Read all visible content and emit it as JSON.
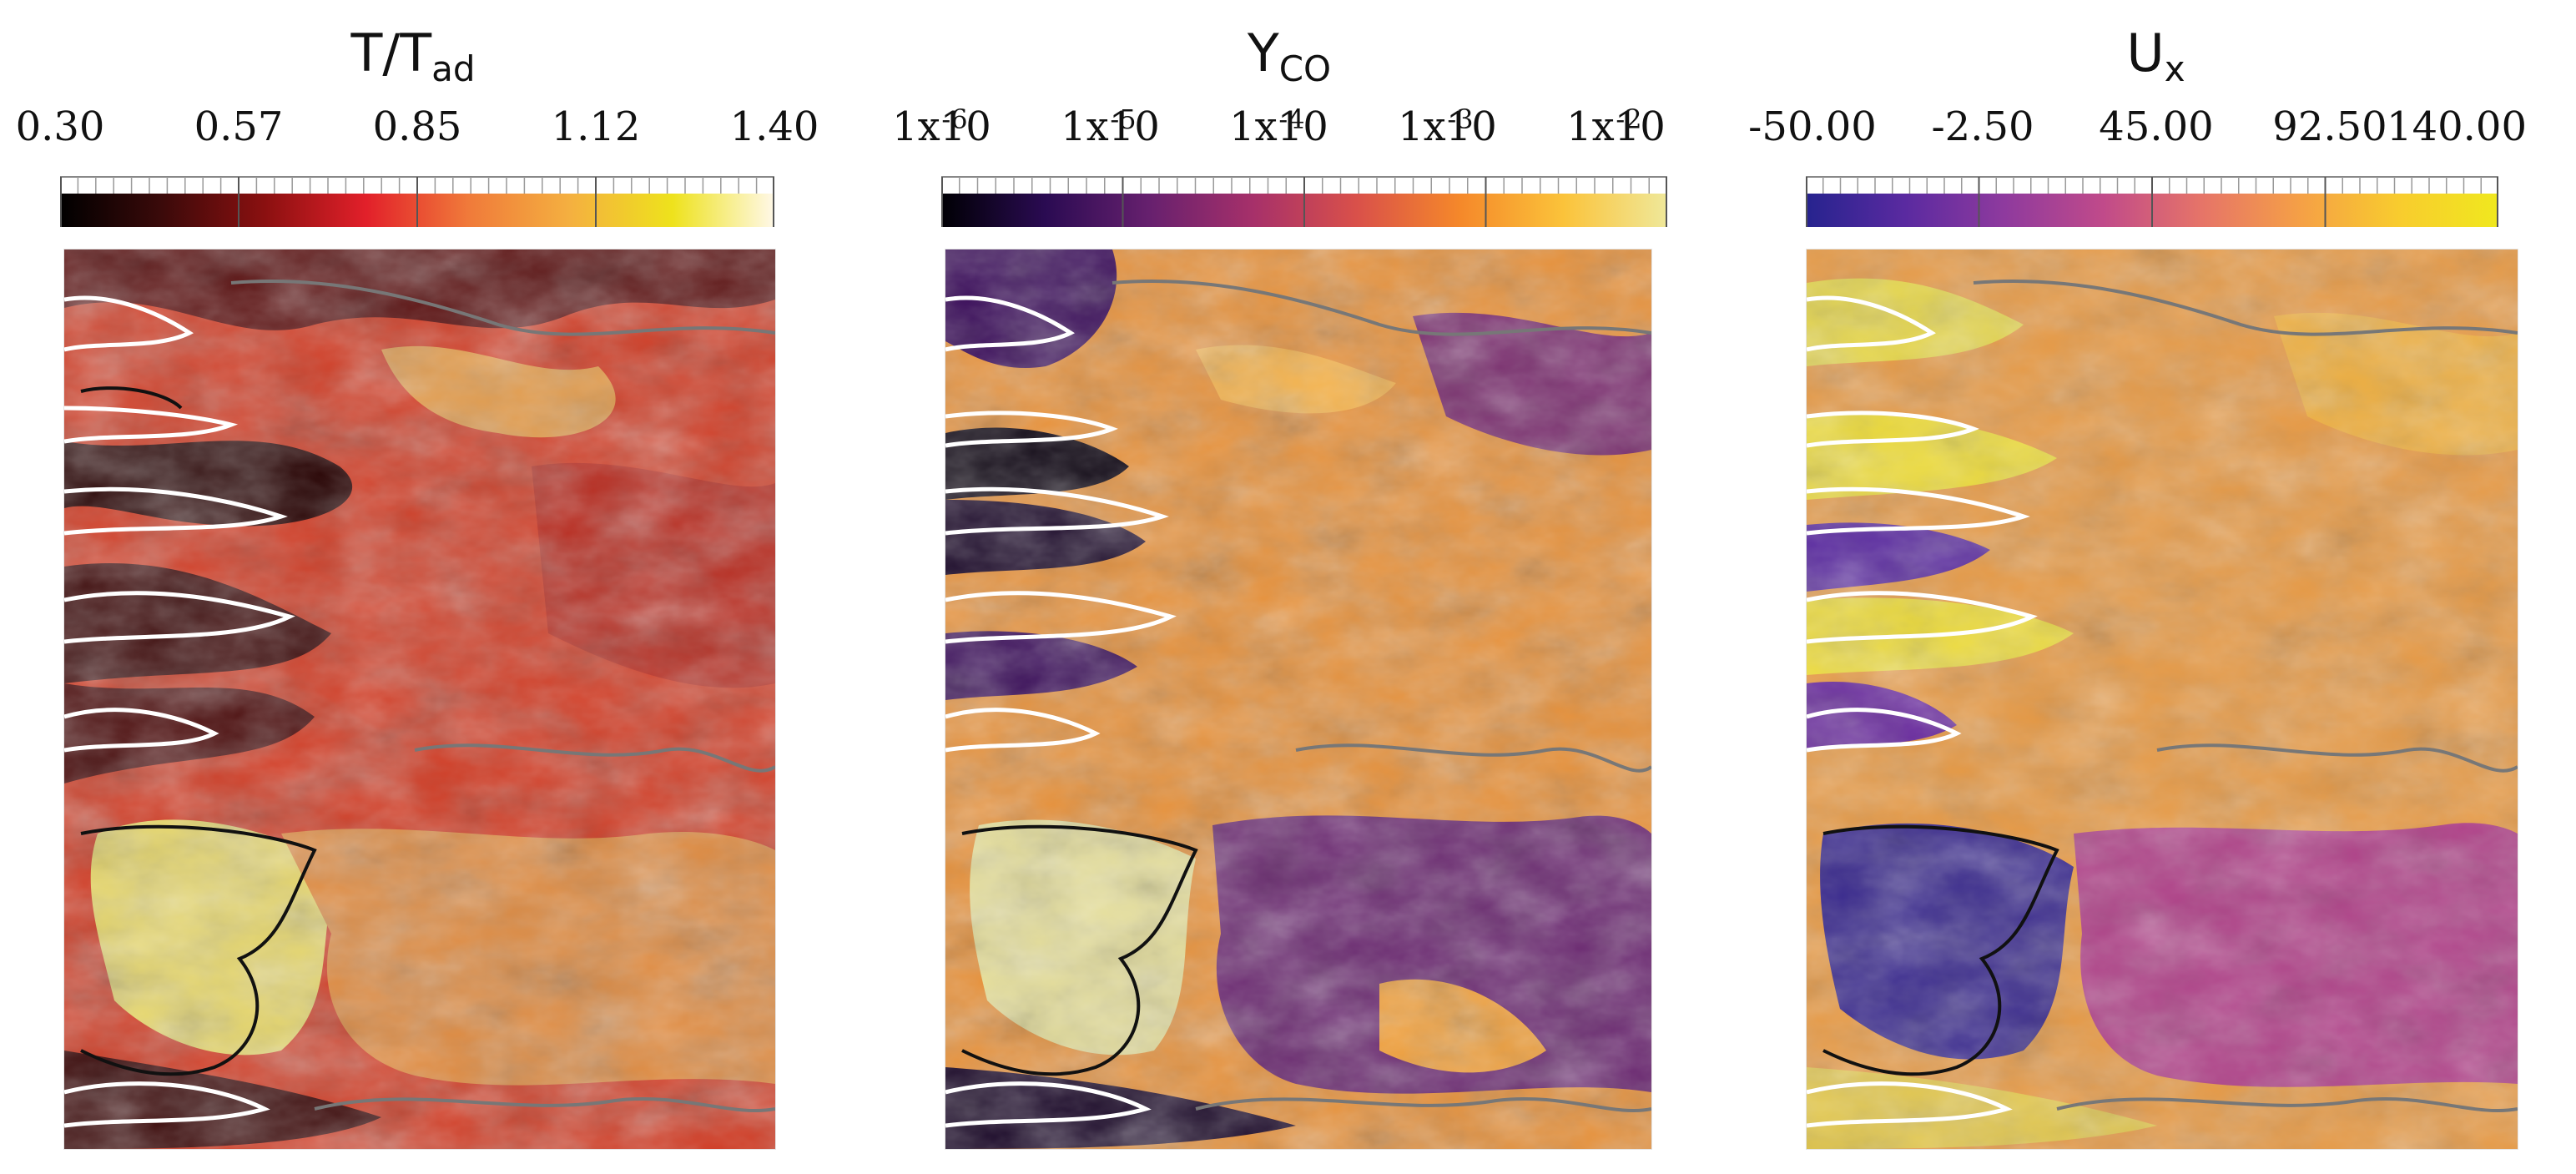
{
  "panels": [
    {
      "id": "temperature",
      "title_main": "T/T",
      "title_sub": "ad",
      "ticks": [
        {
          "base": "0.30"
        },
        {
          "base": "0.57"
        },
        {
          "base": "0.85"
        },
        {
          "base": "1.12"
        },
        {
          "base": "1.40"
        }
      ],
      "colormap": "hot",
      "colormap_stops": [
        "#000000",
        "#3b0a0a",
        "#8a1010",
        "#e2202a",
        "#f07a3a",
        "#f4b040",
        "#eee21c",
        "#fff8e8"
      ]
    },
    {
      "id": "co-mass-fraction",
      "title_main": "Y",
      "title_sub": "CO",
      "ticks": [
        {
          "base": "1x10",
          "exp": "-6"
        },
        {
          "base": "1x10",
          "exp": "-5"
        },
        {
          "base": "1x10",
          "exp": "-4"
        },
        {
          "base": "1x10",
          "exp": "-3"
        },
        {
          "base": "1x10",
          "exp": "-2"
        }
      ],
      "colormap": "inferno",
      "colormap_stops": [
        "#000004",
        "#2a0b52",
        "#66206e",
        "#a6306a",
        "#d9504a",
        "#f5882a",
        "#fbc33a",
        "#efe89a"
      ]
    },
    {
      "id": "axial-velocity",
      "title_main": "U",
      "title_sub": "x",
      "ticks": [
        {
          "base": "-50.00"
        },
        {
          "base": "-2.50"
        },
        {
          "base": "45.00"
        },
        {
          "base": "92.50"
        },
        {
          "base": "140.00"
        }
      ],
      "colormap": "plasma",
      "colormap_stops": [
        "#26238e",
        "#5a2aa0",
        "#8e3a9e",
        "#c04a8a",
        "#e67468",
        "#f5a046",
        "#f8cc2e",
        "#f0e81e"
      ]
    }
  ]
}
